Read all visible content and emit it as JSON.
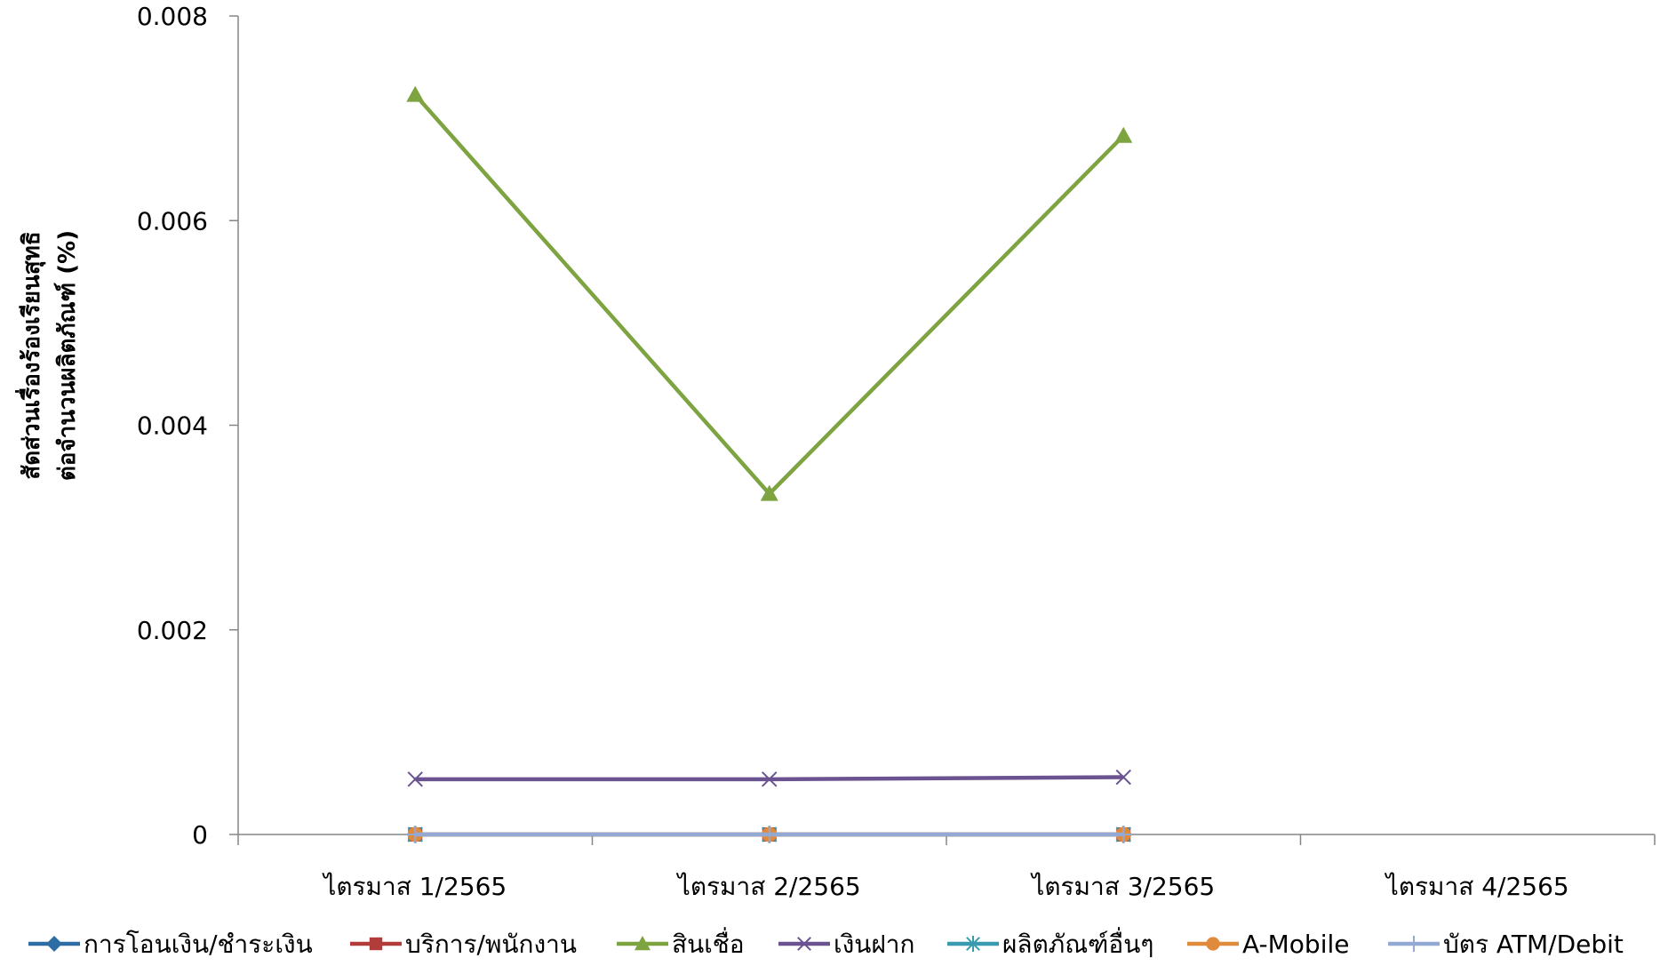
{
  "chart_data": {
    "type": "line",
    "categories": [
      "ไตรมาส 1/2565",
      "ไตรมาส 2/2565",
      "ไตรมาส 3/2565",
      "ไตรมาส 4/2565"
    ],
    "ylabel_lines": [
      "สัดส่วนเรื่องร้องเรียนสุทธิ",
      "ต่อจำนวนผลิตภัณฑ์ (%)"
    ],
    "ylim": [
      0,
      0.008
    ],
    "yticks": [
      0,
      0.002,
      0.004,
      0.006,
      0.008
    ],
    "ytick_labels": [
      "0",
      "0.002",
      "0.004",
      "0.006",
      "0.008"
    ],
    "grid": false,
    "legend_position": "bottom",
    "series": [
      {
        "name": "การโอนเงิน/ชำระเงิน",
        "values": [
          0,
          0,
          0,
          null
        ],
        "color": "#2E6DA4",
        "marker": "diamond"
      },
      {
        "name": "บริการ/พนักงาน",
        "values": [
          0,
          0,
          0,
          null
        ],
        "color": "#B23C3A",
        "marker": "square"
      },
      {
        "name": "สินเชื่อ",
        "values": [
          0.00723,
          0.00333,
          0.00683,
          null
        ],
        "color": "#7EA341",
        "marker": "triangle"
      },
      {
        "name": "เงินฝาก",
        "values": [
          0.00054,
          0.00054,
          0.00056,
          null
        ],
        "color": "#6B5391",
        "marker": "x"
      },
      {
        "name": "ผลิตภัณฑ์อื่นๆ",
        "values": [
          0,
          0,
          0,
          null
        ],
        "color": "#3A9BB0",
        "marker": "asterisk"
      },
      {
        "name": "A-Mobile",
        "values": [
          0,
          0,
          0,
          null
        ],
        "color": "#E08A3C",
        "marker": "circle"
      },
      {
        "name": "บัตร ATM/Debit",
        "values": [
          0,
          0,
          0,
          null
        ],
        "color": "#93A9D4",
        "marker": "plus"
      }
    ]
  }
}
